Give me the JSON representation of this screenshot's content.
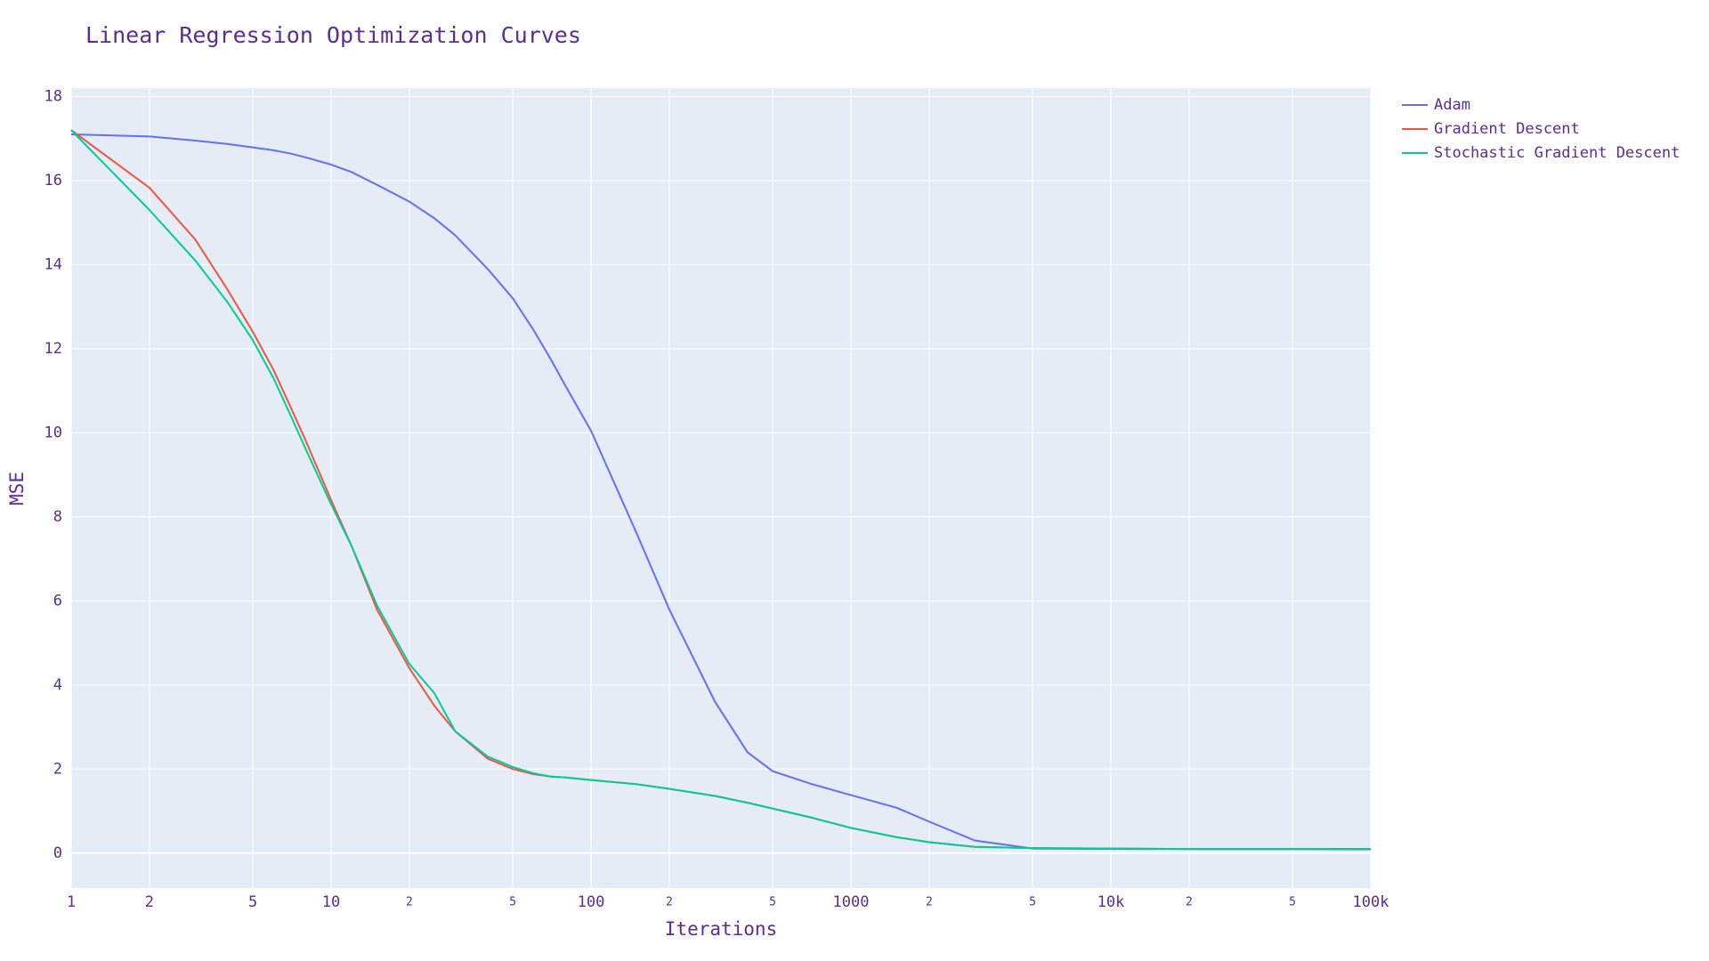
{
  "chart_data": {
    "type": "line",
    "title": "Linear Regression Optimization Curves",
    "x_label": "Iterations",
    "y_label": "MSE",
    "xscale": "log",
    "grid": true,
    "legend": "top-right",
    "x": [
      1,
      2,
      3,
      4,
      5,
      6,
      7,
      8,
      10,
      12,
      15,
      20,
      25,
      30,
      40,
      50,
      60,
      70,
      80,
      100,
      150,
      200,
      300,
      400,
      500,
      700,
      1000,
      1500,
      2000,
      3000,
      5000,
      10000,
      20000,
      50000,
      100000
    ],
    "series": [
      {
        "name": "Adam",
        "color": "#636efa",
        "values": [
          17.1,
          17.05,
          16.95,
          16.87,
          16.79,
          16.72,
          16.64,
          16.55,
          16.38,
          16.2,
          15.9,
          15.5,
          15.1,
          14.7,
          13.9,
          13.2,
          12.45,
          11.75,
          11.1,
          10.05,
          7.6,
          5.8,
          3.6,
          2.4,
          1.95,
          1.65,
          1.38,
          1.08,
          0.75,
          0.3,
          0.11,
          0.1,
          0.1,
          0.1,
          0.09
        ]
      },
      {
        "name": "Gradient Descent",
        "color": "#ef553b",
        "values": [
          17.2,
          15.83,
          14.6,
          13.4,
          12.4,
          11.5,
          10.6,
          9.8,
          8.4,
          7.3,
          5.8,
          4.4,
          3.5,
          2.9,
          2.25,
          2.0,
          1.88,
          1.82,
          1.8,
          1.74,
          1.64,
          1.53,
          1.36,
          1.2,
          1.06,
          0.85,
          0.6,
          0.38,
          0.26,
          0.15,
          0.12,
          0.11,
          0.1,
          0.1,
          0.1
        ]
      },
      {
        "name": "Stochastic Gradient Descent",
        "color": "#00cc96",
        "values": [
          17.2,
          15.3,
          14.1,
          13.1,
          12.2,
          11.3,
          10.4,
          9.6,
          8.3,
          7.3,
          5.9,
          4.5,
          3.8,
          2.9,
          2.3,
          2.05,
          1.9,
          1.82,
          1.8,
          1.74,
          1.64,
          1.53,
          1.36,
          1.2,
          1.06,
          0.85,
          0.6,
          0.38,
          0.26,
          0.15,
          0.12,
          0.11,
          0.1,
          0.1,
          0.1
        ]
      }
    ],
    "xlim": [
      1,
      100000
    ],
    "xticks": [
      1,
      2,
      5,
      10,
      {
        "value": 20,
        "label": "2"
      },
      {
        "value": 50,
        "label": "5"
      },
      100,
      {
        "value": 200,
        "label": "2"
      },
      {
        "value": 500,
        "label": "5"
      },
      1000,
      {
        "value": 2000,
        "label": "2"
      },
      {
        "value": 5000,
        "label": "5"
      },
      {
        "value": 10000,
        "label": "10k"
      },
      {
        "value": 20000,
        "label": "2"
      },
      {
        "value": 50000,
        "label": "5"
      },
      {
        "value": 100000,
        "label": "100k"
      }
    ],
    "ylim": [
      -0.83,
      18.2
    ],
    "yticks": [
      0,
      2,
      4,
      6,
      8,
      10,
      12,
      14,
      16,
      18
    ]
  }
}
